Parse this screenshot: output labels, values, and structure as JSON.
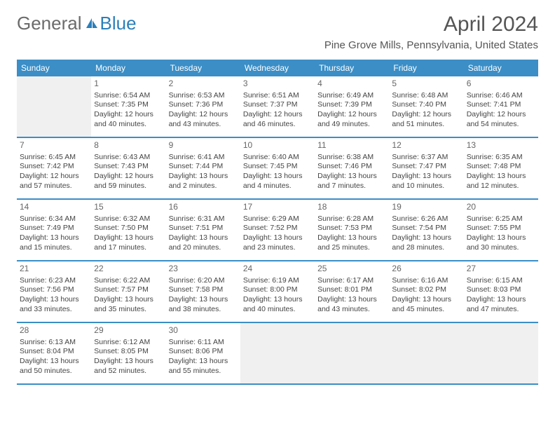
{
  "brand": {
    "part1": "General",
    "part2": "Blue"
  },
  "title": "April 2024",
  "location": "Pine Grove Mills, Pennsylvania, United States",
  "colors": {
    "header_bg": "#3b8ec6",
    "header_text": "#ffffff",
    "divider": "#3b8ec6",
    "empty_cell": "#f0f0f0",
    "logo_gray": "#6b6b6b",
    "logo_blue": "#2b7fba",
    "body_text": "#444444"
  },
  "weekdays": [
    "Sunday",
    "Monday",
    "Tuesday",
    "Wednesday",
    "Thursday",
    "Friday",
    "Saturday"
  ],
  "weeks": [
    [
      null,
      {
        "d": "1",
        "sr": "6:54 AM",
        "ss": "7:35 PM",
        "dl1": "12 hours",
        "dl2": "and 40 minutes."
      },
      {
        "d": "2",
        "sr": "6:53 AM",
        "ss": "7:36 PM",
        "dl1": "12 hours",
        "dl2": "and 43 minutes."
      },
      {
        "d": "3",
        "sr": "6:51 AM",
        "ss": "7:37 PM",
        "dl1": "12 hours",
        "dl2": "and 46 minutes."
      },
      {
        "d": "4",
        "sr": "6:49 AM",
        "ss": "7:39 PM",
        "dl1": "12 hours",
        "dl2": "and 49 minutes."
      },
      {
        "d": "5",
        "sr": "6:48 AM",
        "ss": "7:40 PM",
        "dl1": "12 hours",
        "dl2": "and 51 minutes."
      },
      {
        "d": "6",
        "sr": "6:46 AM",
        "ss": "7:41 PM",
        "dl1": "12 hours",
        "dl2": "and 54 minutes."
      }
    ],
    [
      {
        "d": "7",
        "sr": "6:45 AM",
        "ss": "7:42 PM",
        "dl1": "12 hours",
        "dl2": "and 57 minutes."
      },
      {
        "d": "8",
        "sr": "6:43 AM",
        "ss": "7:43 PM",
        "dl1": "12 hours",
        "dl2": "and 59 minutes."
      },
      {
        "d": "9",
        "sr": "6:41 AM",
        "ss": "7:44 PM",
        "dl1": "13 hours",
        "dl2": "and 2 minutes."
      },
      {
        "d": "10",
        "sr": "6:40 AM",
        "ss": "7:45 PM",
        "dl1": "13 hours",
        "dl2": "and 4 minutes."
      },
      {
        "d": "11",
        "sr": "6:38 AM",
        "ss": "7:46 PM",
        "dl1": "13 hours",
        "dl2": "and 7 minutes."
      },
      {
        "d": "12",
        "sr": "6:37 AM",
        "ss": "7:47 PM",
        "dl1": "13 hours",
        "dl2": "and 10 minutes."
      },
      {
        "d": "13",
        "sr": "6:35 AM",
        "ss": "7:48 PM",
        "dl1": "13 hours",
        "dl2": "and 12 minutes."
      }
    ],
    [
      {
        "d": "14",
        "sr": "6:34 AM",
        "ss": "7:49 PM",
        "dl1": "13 hours",
        "dl2": "and 15 minutes."
      },
      {
        "d": "15",
        "sr": "6:32 AM",
        "ss": "7:50 PM",
        "dl1": "13 hours",
        "dl2": "and 17 minutes."
      },
      {
        "d": "16",
        "sr": "6:31 AM",
        "ss": "7:51 PM",
        "dl1": "13 hours",
        "dl2": "and 20 minutes."
      },
      {
        "d": "17",
        "sr": "6:29 AM",
        "ss": "7:52 PM",
        "dl1": "13 hours",
        "dl2": "and 23 minutes."
      },
      {
        "d": "18",
        "sr": "6:28 AM",
        "ss": "7:53 PM",
        "dl1": "13 hours",
        "dl2": "and 25 minutes."
      },
      {
        "d": "19",
        "sr": "6:26 AM",
        "ss": "7:54 PM",
        "dl1": "13 hours",
        "dl2": "and 28 minutes."
      },
      {
        "d": "20",
        "sr": "6:25 AM",
        "ss": "7:55 PM",
        "dl1": "13 hours",
        "dl2": "and 30 minutes."
      }
    ],
    [
      {
        "d": "21",
        "sr": "6:23 AM",
        "ss": "7:56 PM",
        "dl1": "13 hours",
        "dl2": "and 33 minutes."
      },
      {
        "d": "22",
        "sr": "6:22 AM",
        "ss": "7:57 PM",
        "dl1": "13 hours",
        "dl2": "and 35 minutes."
      },
      {
        "d": "23",
        "sr": "6:20 AM",
        "ss": "7:58 PM",
        "dl1": "13 hours",
        "dl2": "and 38 minutes."
      },
      {
        "d": "24",
        "sr": "6:19 AM",
        "ss": "8:00 PM",
        "dl1": "13 hours",
        "dl2": "and 40 minutes."
      },
      {
        "d": "25",
        "sr": "6:17 AM",
        "ss": "8:01 PM",
        "dl1": "13 hours",
        "dl2": "and 43 minutes."
      },
      {
        "d": "26",
        "sr": "6:16 AM",
        "ss": "8:02 PM",
        "dl1": "13 hours",
        "dl2": "and 45 minutes."
      },
      {
        "d": "27",
        "sr": "6:15 AM",
        "ss": "8:03 PM",
        "dl1": "13 hours",
        "dl2": "and 47 minutes."
      }
    ],
    [
      {
        "d": "28",
        "sr": "6:13 AM",
        "ss": "8:04 PM",
        "dl1": "13 hours",
        "dl2": "and 50 minutes."
      },
      {
        "d": "29",
        "sr": "6:12 AM",
        "ss": "8:05 PM",
        "dl1": "13 hours",
        "dl2": "and 52 minutes."
      },
      {
        "d": "30",
        "sr": "6:11 AM",
        "ss": "8:06 PM",
        "dl1": "13 hours",
        "dl2": "and 55 minutes."
      },
      null,
      null,
      null,
      null
    ]
  ],
  "labels": {
    "sunrise_prefix": "Sunrise: ",
    "sunset_prefix": "Sunset: ",
    "daylight_prefix": "Daylight: "
  }
}
